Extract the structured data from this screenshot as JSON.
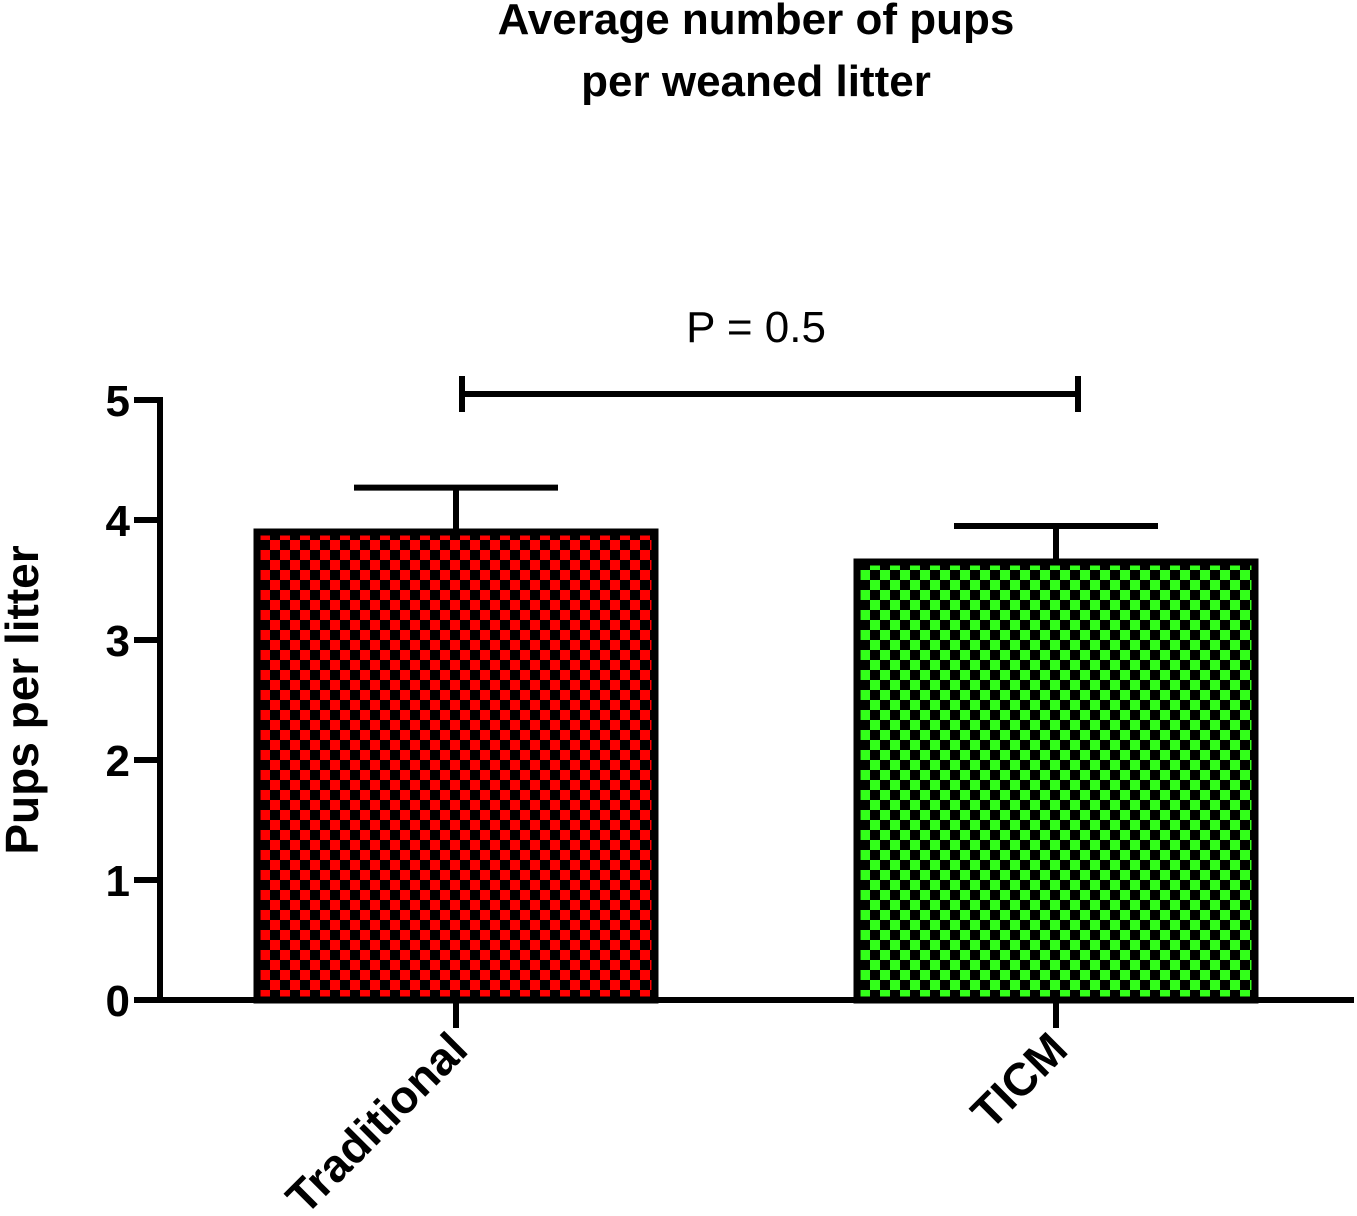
{
  "chart_data": {
    "type": "bar",
    "title_lines": [
      "Average number of pups",
      "per weaned litter"
    ],
    "ylabel": "Pups per litter",
    "xlabel": "",
    "categories": [
      "Traditional",
      "TICM"
    ],
    "values": [
      3.9,
      3.65
    ],
    "error": [
      0.37,
      0.3
    ],
    "ylim": [
      0,
      5
    ],
    "yticks": [
      "0",
      "1",
      "2",
      "3",
      "4",
      "5"
    ],
    "bar_colors": [
      "#ff0000",
      "#33ff1a"
    ],
    "pattern_color": "#000000",
    "annotation": {
      "text": "P = 0.5",
      "from": 0,
      "to": 1,
      "y": 5.05
    },
    "grid": false,
    "legend": "none"
  }
}
